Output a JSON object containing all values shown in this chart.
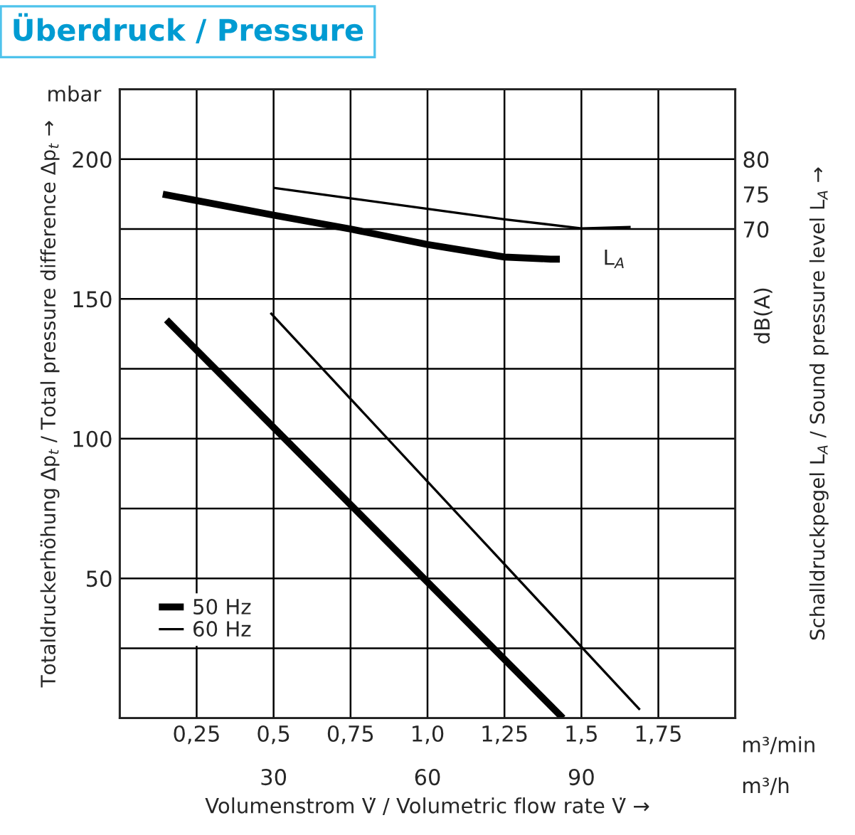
{
  "chart_data": {
    "type": "line",
    "title": "Überdruck / Pressure",
    "xlabel": "Volumenstrom V̇ / Volumetric flow rate V̇ →",
    "ylabel": "Totaldruckerhöhung Δp$_{t}$ / Total pressure difference Δp$_{t}$ →",
    "y2label": "Schalldruckpegel L$_{A}$ / Sound pressure level L$_{A}$ →",
    "xlim": [
      0,
      2.0
    ],
    "xticks": [
      {
        "value": 0.25,
        "label": "0,25"
      },
      {
        "value": 0.5,
        "label": "0,5"
      },
      {
        "value": 0.75,
        "label": "0,75"
      },
      {
        "value": 1.0,
        "label": "1,0"
      },
      {
        "value": 1.25,
        "label": "1,25"
      },
      {
        "value": 1.5,
        "label": "1,5"
      },
      {
        "value": 1.75,
        "label": "1,75"
      }
    ],
    "x2lim": [
      0,
      120
    ],
    "x2ticks": [
      30,
      60,
      90
    ],
    "ylim": [
      0,
      225
    ],
    "yticks": [
      {
        "value": 25,
        "label": null
      },
      50,
      {
        "value": 75,
        "label": null
      },
      100,
      {
        "value": 125,
        "label": null
      },
      150,
      {
        "value": 175,
        "label": null
      },
      200
    ],
    "y2lim": [
      0,
      90
    ],
    "y2ticks": [
      70,
      75,
      80
    ],
    "grid": true,
    "legend": "bottom left",
    "series": [
      {
        "name": "50 Hz",
        "color": "#000000",
        "x": [
          0.152,
          1.44
        ],
        "values": [
          142.5,
          0
        ]
      },
      {
        "name": "60 Hz",
        "color": "#000000",
        "x": [
          0.49,
          1.69
        ],
        "values": [
          145,
          3
        ]
      },
      {
        "color": "#000000",
        "axis": "y2",
        "x": [
          0.14,
          0.5,
          0.75,
          1.0,
          1.25,
          1.4,
          1.43
        ],
        "values": [
          75.0,
          72.0,
          70.0,
          67.8,
          66.0,
          65.7,
          65.7
        ]
      },
      {
        "color": "#000000",
        "axis": "y2",
        "x": [
          0.5,
          0.75,
          1.0,
          1.25,
          1.5,
          1.66
        ],
        "values": [
          75.9,
          74.4,
          72.9,
          71.4,
          70.1,
          70.3
        ]
      }
    ],
    "annotations": [
      "mbar",
      "dB(A)",
      "m³/min",
      "m³/h",
      "L$_{A}$"
    ]
  }
}
